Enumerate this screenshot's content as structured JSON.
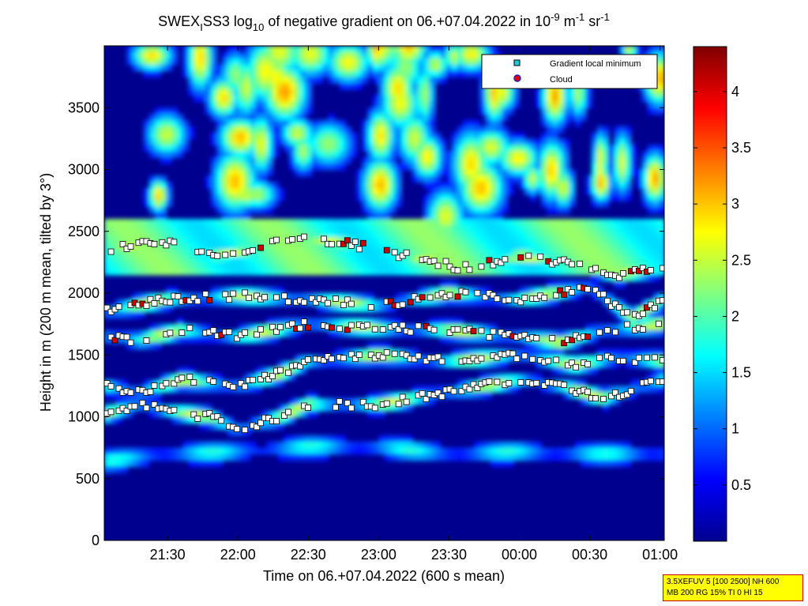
{
  "chart_data": {
    "type": "heatmap",
    "title": "SWEX_ISS3 log10 of negative gradient on 06.+07.04.2022 in 10-9 m-1 sr-1",
    "title_parts": {
      "prefix": "SWEX",
      "prefix_sub": "I",
      "mid1": "SS3 log",
      "log_sub": "10",
      "mid2": " of negative gradient on 06.+07.04.2022 in 10",
      "exp1": "-9",
      "unit1": " m",
      "exp2": "-1",
      "unit2": " sr",
      "exp3": "-1"
    },
    "xlabel": "Time on 06.+07.04.2022 (600 s mean)",
    "ylabel": "Height in m (200 m mean, tilted by 3°)",
    "x_range_hours": [
      21.05,
      25.03
    ],
    "ylim": [
      0,
      4000
    ],
    "x_ticks": [
      {
        "h": 21.5,
        "label": "21:30"
      },
      {
        "h": 22.0,
        "label": "22:00"
      },
      {
        "h": 22.5,
        "label": "22:30"
      },
      {
        "h": 23.0,
        "label": "23:00"
      },
      {
        "h": 23.5,
        "label": "23:30"
      },
      {
        "h": 24.0,
        "label": "00:00"
      },
      {
        "h": 24.5,
        "label": "00:30"
      },
      {
        "h": 25.0,
        "label": "01:00"
      }
    ],
    "y_ticks": [
      0,
      500,
      1000,
      1500,
      2000,
      2500,
      3000,
      3500
    ],
    "colorbar": {
      "colormap": "jet",
      "range": [
        0,
        4.4
      ],
      "ticks": [
        0.5,
        1,
        1.5,
        2,
        2.5,
        3,
        3.5,
        4
      ],
      "tick_labels": [
        "0.5",
        "1",
        "1.5",
        "2",
        "2.5",
        "3",
        "3.5",
        "4"
      ]
    },
    "legend": {
      "placement": "top-right",
      "entries": [
        {
          "label": "Gradient local minimum",
          "marker": "square",
          "color": "#22c8d8"
        },
        {
          "label": "Cloud",
          "marker": "circle",
          "color": "#e00000",
          "edge": "#2020c0"
        }
      ]
    },
    "layers": [
      {
        "name": "low band",
        "points": [
          [
            21.05,
            640
          ],
          [
            21.5,
            700
          ],
          [
            22.0,
            720
          ],
          [
            22.5,
            760
          ],
          [
            23.0,
            760
          ],
          [
            23.5,
            700
          ],
          [
            24.0,
            720
          ],
          [
            24.5,
            700
          ],
          [
            25.03,
            700
          ]
        ]
      },
      {
        "name": "mid band",
        "points": [
          [
            21.05,
            1020
          ],
          [
            21.3,
            1100
          ],
          [
            21.5,
            1050
          ],
          [
            21.8,
            1000
          ],
          [
            22.0,
            900
          ],
          [
            22.3,
            1000
          ],
          [
            22.5,
            1100
          ],
          [
            23.0,
            1100
          ],
          [
            23.5,
            1200
          ],
          [
            24.0,
            1300
          ],
          [
            24.3,
            1250
          ],
          [
            24.6,
            1150
          ],
          [
            25.03,
            1300
          ]
        ]
      },
      {
        "name": "band 1300-1500",
        "points": [
          [
            21.05,
            1250
          ],
          [
            21.3,
            1200
          ],
          [
            21.6,
            1300
          ],
          [
            22.0,
            1250
          ],
          [
            22.3,
            1350
          ],
          [
            22.5,
            1450
          ],
          [
            23.0,
            1500
          ],
          [
            23.5,
            1450
          ],
          [
            24.0,
            1500
          ],
          [
            24.4,
            1420
          ],
          [
            24.7,
            1480
          ],
          [
            25.03,
            1450
          ]
        ]
      },
      {
        "name": "band 1600-1700",
        "points": [
          [
            21.05,
            1650
          ],
          [
            21.3,
            1620
          ],
          [
            21.6,
            1700
          ],
          [
            22.0,
            1650
          ],
          [
            22.5,
            1750
          ],
          [
            23.0,
            1720
          ],
          [
            23.5,
            1700
          ],
          [
            24.0,
            1650
          ],
          [
            24.3,
            1600
          ],
          [
            24.6,
            1700
          ],
          [
            25.03,
            1750
          ]
        ]
      },
      {
        "name": "band 1800-2000",
        "points": [
          [
            21.05,
            1850
          ],
          [
            21.5,
            1950
          ],
          [
            22.0,
            1980
          ],
          [
            22.5,
            1950
          ],
          [
            23.0,
            1900
          ],
          [
            23.5,
            2000
          ],
          [
            24.0,
            1950
          ],
          [
            24.5,
            2050
          ],
          [
            24.8,
            1800
          ],
          [
            25.03,
            1950
          ]
        ]
      },
      {
        "name": "band 2300-2400",
        "points": [
          [
            21.05,
            2350
          ],
          [
            21.3,
            2400
          ],
          [
            21.6,
            2400
          ],
          [
            21.8,
            2300
          ],
          [
            22.1,
            2350
          ],
          [
            22.4,
            2450
          ],
          [
            22.8,
            2400
          ],
          [
            23.2,
            2300
          ],
          [
            23.6,
            2200
          ],
          [
            24.0,
            2300
          ],
          [
            24.3,
            2250
          ],
          [
            24.7,
            2150
          ],
          [
            25.03,
            2200
          ]
        ]
      }
    ]
  },
  "footer_box": {
    "line1": "3.5XEFUV 5 [100 2500] NH 600",
    "line2": "MB 200 RG 15% TI 0 HI 15"
  }
}
